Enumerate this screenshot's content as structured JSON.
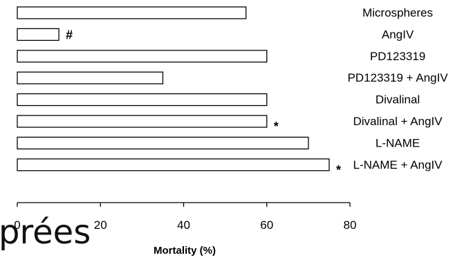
{
  "chart_data": {
    "type": "bar",
    "orientation": "horizontal",
    "categories": [
      "Microspheres",
      "AngIV",
      "PD123319",
      "PD123319 + AngIV",
      "Divalinal",
      "Divalinal + AngIV",
      "L-NAME",
      "L-NAME + AngIV"
    ],
    "values": [
      55,
      10,
      60,
      35,
      60,
      60,
      70,
      75
    ],
    "annotations": [
      "",
      "#",
      "",
      "",
      "",
      "*",
      "",
      "*"
    ],
    "xlabel": "Mortality (%)",
    "ylabel": "",
    "xlim": [
      0,
      80
    ],
    "xticks": [
      "0",
      "20",
      "40",
      "60",
      "80"
    ],
    "grid": false,
    "bar_fill": "#ffffff",
    "bar_stroke": "#000000"
  },
  "overlay_text": "prées"
}
